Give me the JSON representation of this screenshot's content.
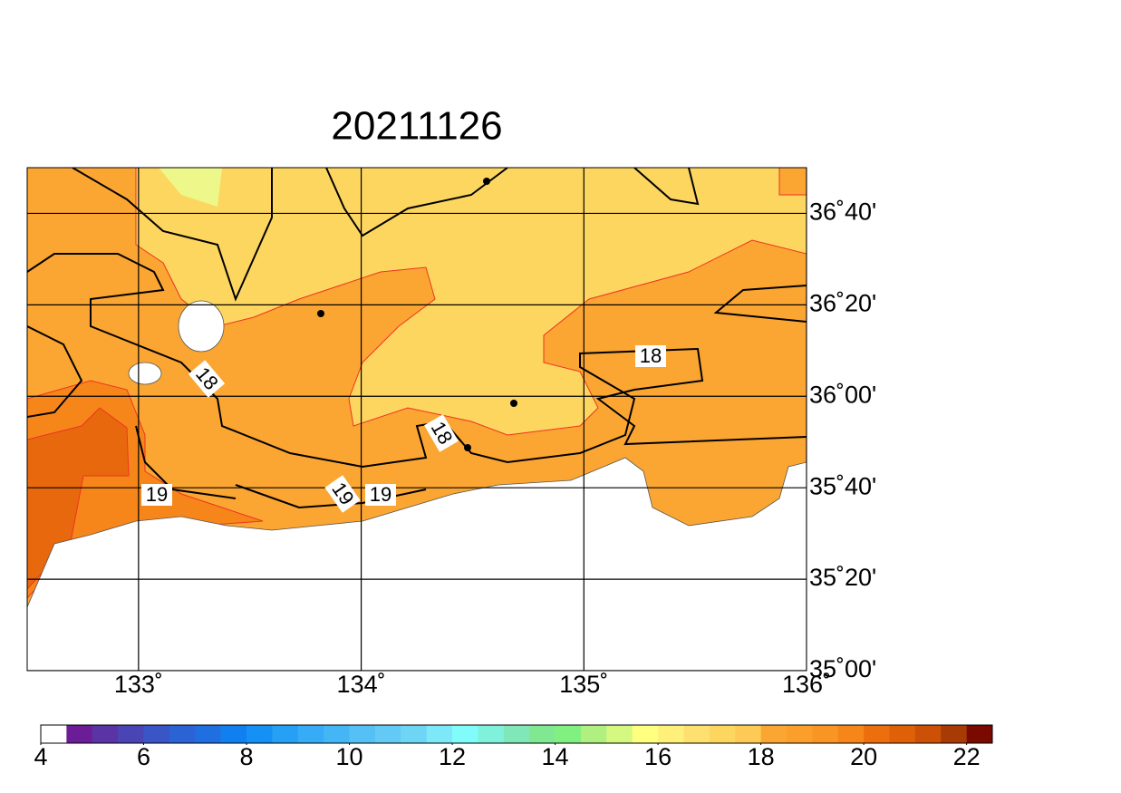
{
  "title": "20211126",
  "map": {
    "lon_range": [
      132.5,
      136
    ],
    "lat_range": [
      35,
      36.8333
    ],
    "lon_ticks": [
      {
        "value": 133,
        "label": "133˚"
      },
      {
        "value": 134,
        "label": "134˚"
      },
      {
        "value": 135,
        "label": "135˚"
      },
      {
        "value": 136,
        "label": "136˚"
      }
    ],
    "lat_ticks": [
      {
        "value": 35,
        "label": "35˚00'"
      },
      {
        "value": 35.3333,
        "label": "35˚20'"
      },
      {
        "value": 35.6667,
        "label": "35˚40'"
      },
      {
        "value": 36,
        "label": "36˚00'"
      },
      {
        "value": 36.3333,
        "label": "36˚20'"
      },
      {
        "value": 36.6667,
        "label": "36˚40'"
      }
    ]
  },
  "contour_labels": [
    "18",
    "19",
    "18",
    "19",
    "19",
    "18"
  ],
  "colorbar": {
    "range": [
      4,
      22.5
    ],
    "colors": [
      "#ffffff",
      "#6d1c98",
      "#5a33a5",
      "#4a45b5",
      "#3a55c5",
      "#2b63d5",
      "#1f6fe0",
      "#1080f0",
      "#1590f5",
      "#25a0f5",
      "#35acf5",
      "#45b6f5",
      "#55c0f5",
      "#62caf5",
      "#6ed5f5",
      "#7de8f8",
      "#80fcfa",
      "#80f2dc",
      "#80e8b8",
      "#80e890",
      "#80f080",
      "#b0f080",
      "#d5f880",
      "#ffff80",
      "#fff07a",
      "#fee070",
      "#fdd660",
      "#fdca55",
      "#fba632",
      "#fb9e2a",
      "#f99522",
      "#f7861a",
      "#ed6e0c",
      "#e06008",
      "#cc5006",
      "#a83a05",
      "#7a0a00"
    ],
    "ticks": [
      4,
      6,
      8,
      10,
      12,
      14,
      16,
      18,
      20,
      22
    ]
  }
}
